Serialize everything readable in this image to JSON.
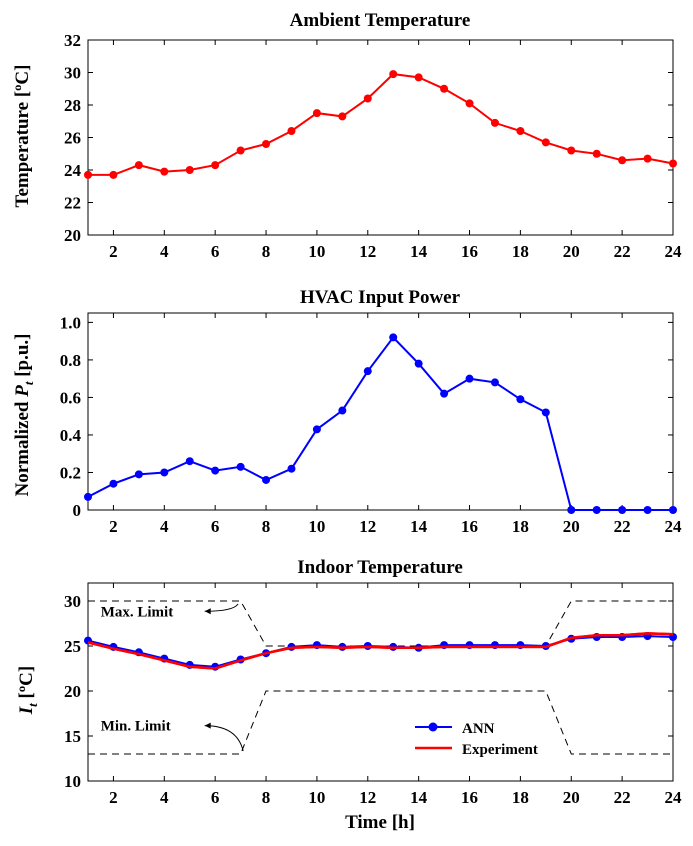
{
  "chart_data": [
    {
      "type": "line",
      "title": "Ambient Temperature",
      "ylabel": "Temperature [ºC]",
      "xlabel": "",
      "xlim": [
        1,
        24
      ],
      "ylim": [
        20,
        32
      ],
      "xticks": [
        2,
        4,
        6,
        8,
        10,
        12,
        14,
        16,
        18,
        20,
        22,
        24
      ],
      "yticks": [
        20,
        22,
        24,
        26,
        28,
        30,
        32
      ],
      "grid": false,
      "series": [
        {
          "color": "#ff0000",
          "x": [
            1,
            2,
            3,
            4,
            5,
            6,
            7,
            8,
            9,
            10,
            11,
            12,
            13,
            14,
            15,
            16,
            17,
            18,
            19,
            20,
            21,
            22,
            23,
            24
          ],
          "y": [
            23.7,
            23.7,
            24.3,
            23.9,
            24.0,
            24.3,
            25.2,
            25.6,
            26.4,
            27.5,
            27.3,
            28.4,
            29.9,
            29.7,
            29.0,
            28.1,
            26.9,
            26.4,
            25.7,
            25.2,
            25.0,
            24.6,
            24.7,
            24.4
          ]
        }
      ]
    },
    {
      "type": "line",
      "title": "HVAC Input Power",
      "ylabel_main": "Normalized ",
      "ylabel_var": "P",
      "ylabel_sub": "t",
      "ylabel_unit": " [p.u.]",
      "xlabel": "",
      "xlim": [
        1,
        24
      ],
      "ylim": [
        0,
        1.05
      ],
      "xticks": [
        2,
        4,
        6,
        8,
        10,
        12,
        14,
        16,
        18,
        20,
        22,
        24
      ],
      "yticks": [
        0,
        0.2,
        0.4,
        0.6,
        0.8,
        1.0
      ],
      "ytick_labels": [
        "0",
        "0.2",
        "0.4",
        "0.6",
        "0.8",
        "1.0"
      ],
      "grid": false,
      "series": [
        {
          "color": "#0000ff",
          "x": [
            1,
            2,
            3,
            4,
            5,
            6,
            7,
            8,
            9,
            10,
            11,
            12,
            13,
            14,
            15,
            16,
            17,
            18,
            19,
            20,
            21,
            22,
            23,
            24
          ],
          "y": [
            0.07,
            0.14,
            0.19,
            0.2,
            0.26,
            0.21,
            0.23,
            0.16,
            0.22,
            0.43,
            0.53,
            0.74,
            0.92,
            0.78,
            0.62,
            0.7,
            0.68,
            0.59,
            0.52,
            0.0,
            0.0,
            0.0,
            0.0,
            0.0
          ]
        }
      ]
    },
    {
      "type": "line",
      "title": "Indoor Temperature",
      "ylabel_var": "I",
      "ylabel_sub": "t",
      "ylabel_unit": " [ºC]",
      "xlabel": "Time [h]",
      "xlim": [
        1,
        24
      ],
      "ylim": [
        10,
        32
      ],
      "xticks": [
        2,
        4,
        6,
        8,
        10,
        12,
        14,
        16,
        18,
        20,
        22,
        24
      ],
      "yticks": [
        10,
        15,
        20,
        25,
        30
      ],
      "grid": false,
      "legend_position": "bottom-right",
      "series": [
        {
          "name": "ANN",
          "color": "#0000ff",
          "marker": "circle",
          "x": [
            1,
            2,
            3,
            4,
            5,
            6,
            7,
            8,
            9,
            10,
            11,
            12,
            13,
            14,
            15,
            16,
            17,
            18,
            19,
            20,
            21,
            22,
            23,
            24
          ],
          "y": [
            25.6,
            24.9,
            24.3,
            23.6,
            22.9,
            22.7,
            23.5,
            24.2,
            24.9,
            25.1,
            24.9,
            25.0,
            24.9,
            24.8,
            25.1,
            25.1,
            25.1,
            25.1,
            25.0,
            25.8,
            26.0,
            26.0,
            26.1,
            26.0
          ]
        },
        {
          "name": "Experiment",
          "color": "#ff0000",
          "x": [
            1,
            2,
            3,
            4,
            5,
            6,
            7,
            8,
            9,
            10,
            11,
            12,
            13,
            14,
            15,
            16,
            17,
            18,
            19,
            20,
            21,
            22,
            23,
            24
          ],
          "y": [
            25.4,
            24.7,
            24.1,
            23.4,
            22.7,
            22.5,
            23.4,
            24.2,
            24.8,
            24.9,
            24.8,
            24.9,
            24.8,
            24.8,
            24.9,
            24.9,
            24.9,
            24.9,
            24.9,
            25.9,
            26.2,
            26.2,
            26.4,
            26.3
          ]
        },
        {
          "role": "max-limit",
          "color": "#000000",
          "dashed": true,
          "x": [
            1,
            7,
            8,
            19,
            20,
            24
          ],
          "y": [
            30,
            30,
            25,
            25,
            30,
            30
          ]
        },
        {
          "role": "min-limit",
          "color": "#000000",
          "dashed": true,
          "x": [
            1,
            7,
            8,
            19,
            20,
            24
          ],
          "y": [
            13,
            13,
            20,
            20,
            13,
            13
          ]
        }
      ],
      "annotations": [
        {
          "text": "Max. Limit",
          "x": 6.9,
          "y": 30,
          "text_x": 1.5,
          "text_y": 28.3
        },
        {
          "text": "Min. Limit",
          "x": 7.1,
          "y": 13,
          "text_x": 1.5,
          "text_y": 15.6
        }
      ]
    }
  ]
}
